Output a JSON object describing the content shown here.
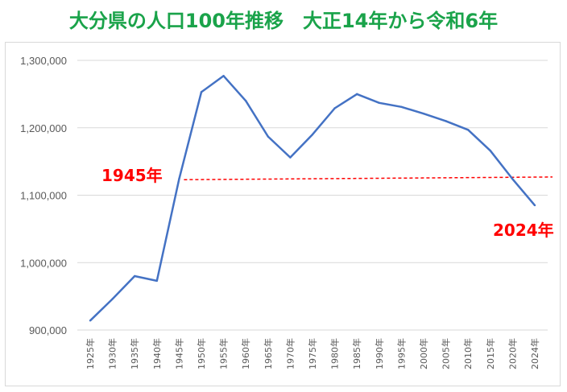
{
  "chart_data": {
    "type": "line",
    "title": "大分県の人口100年推移　大正14年から令和6年",
    "title_color": "#1aa34a",
    "categories": [
      "1925年",
      "1930年",
      "1935年",
      "1940年",
      "1945年",
      "1950年",
      "1955年",
      "1960年",
      "1965年",
      "1970年",
      "1975年",
      "1980年",
      "1985年",
      "1990年",
      "1995年",
      "2000年",
      "2005年",
      "2010年",
      "2015年",
      "2020年",
      "2024年"
    ],
    "series": [
      {
        "color": "#4472c4",
        "values": [
          914000,
          946000,
          980000,
          973000,
          1124000,
          1253000,
          1277000,
          1240000,
          1187000,
          1156000,
          1190000,
          1229000,
          1250000,
          1237000,
          1231000,
          1221000,
          1210000,
          1197000,
          1166000,
          1124000,
          1085000
        ]
      }
    ],
    "ylim": [
      900000,
      1300000
    ],
    "yticks": [
      900000,
      1000000,
      1100000,
      1200000,
      1300000
    ],
    "ytick_labels": [
      "900,000",
      "1,000,000",
      "1,100,000",
      "1,200,000",
      "1,300,000"
    ],
    "grid": true,
    "grid_color": "#d9d9d9",
    "reference_line": {
      "style": "dashed",
      "color": "#ff0000",
      "from_category": "1945年",
      "y_start": 1123000,
      "y_end": 1127000
    },
    "annotations": [
      {
        "text": "1945年",
        "color": "#ff0000"
      },
      {
        "text": "2024年",
        "color": "#ff0000"
      }
    ]
  }
}
